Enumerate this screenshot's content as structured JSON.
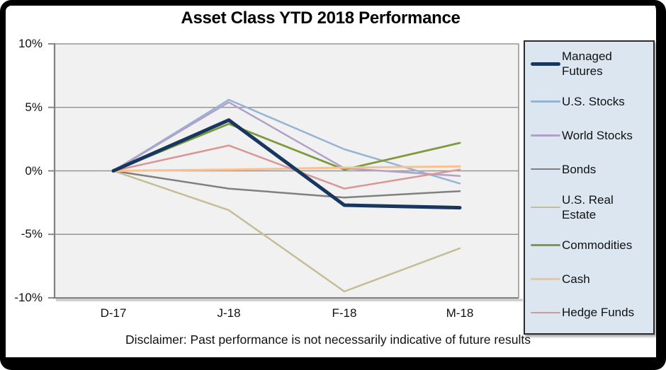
{
  "disclaimer": "Disclaimer: Past performance is not necessarily indicative of future results",
  "colors": {
    "frame": "#000000",
    "plot_bg": "#F1F1F1",
    "grid": "#969696",
    "axis": "#7F7F7F",
    "legend_bg": "#DCE6F1",
    "legend_border": "#2D2D2D",
    "text": "#111111"
  },
  "chart_data": {
    "type": "line",
    "title": "Asset Class YTD 2018 Performance",
    "categories": [
      "D-17",
      "J-18",
      "F-18",
      "M-18"
    ],
    "y_ticks": [
      "10%",
      "5%",
      "0%",
      "-5%",
      "-10%"
    ],
    "y_tick_values": [
      10,
      5,
      0,
      -5,
      -10
    ],
    "ylim": [
      -10,
      10
    ],
    "grid": true,
    "legend_position": "right",
    "xlabel": "",
    "ylabel": "",
    "series": [
      {
        "name": "Managed Futures",
        "color": "#17375E",
        "width": 5,
        "values": [
          0,
          4.0,
          -2.7,
          -2.9
        ]
      },
      {
        "name": "U.S. Stocks",
        "color": "#95B3D7",
        "width": 2.5,
        "values": [
          0,
          5.6,
          1.7,
          -1.0
        ]
      },
      {
        "name": "World Stocks",
        "color": "#B1A0C7",
        "width": 2.5,
        "values": [
          0,
          5.4,
          0.2,
          -0.4
        ]
      },
      {
        "name": "Bonds",
        "color": "#808080",
        "width": 2.5,
        "values": [
          0,
          -1.4,
          -2.1,
          -1.6
        ]
      },
      {
        "name": "U.S. Real Estate",
        "color": "#C4BD97",
        "width": 2.5,
        "values": [
          0,
          -3.1,
          -9.5,
          -6.1
        ]
      },
      {
        "name": "Commodities",
        "color": "#7F9A3D",
        "width": 2.8,
        "values": [
          0,
          3.7,
          0.1,
          2.2
        ]
      },
      {
        "name": "Cash",
        "color": "#FAC090",
        "width": 3,
        "values": [
          0,
          0.1,
          0.25,
          0.35
        ]
      },
      {
        "name": "Hedge Funds",
        "color": "#D99694",
        "width": 2.5,
        "values": [
          0,
          2.0,
          -1.4,
          0.1
        ]
      }
    ]
  }
}
